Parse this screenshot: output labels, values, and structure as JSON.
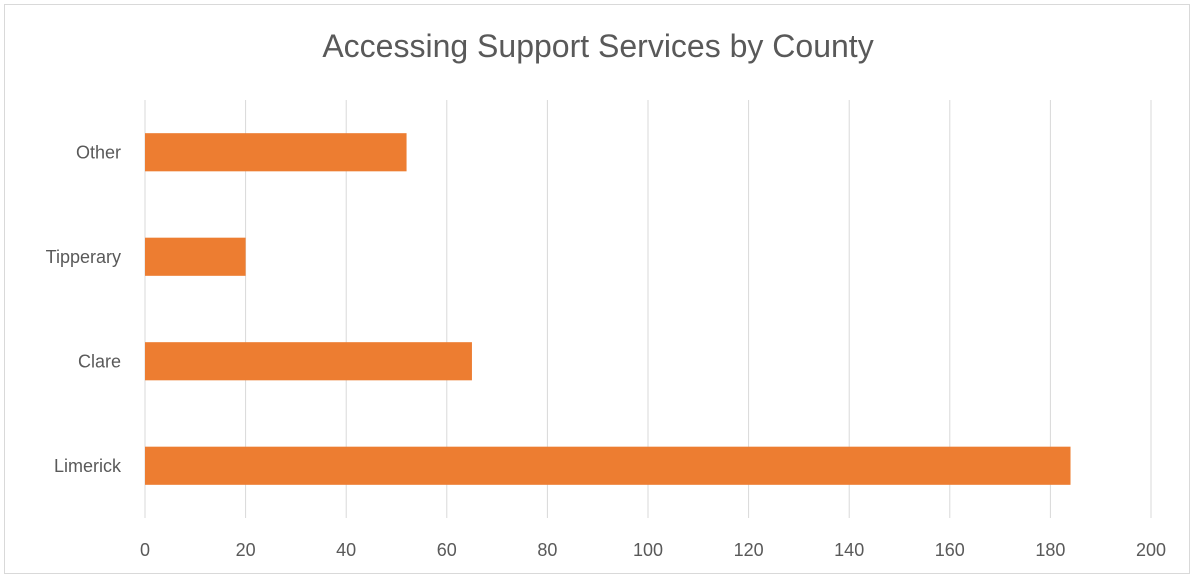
{
  "chart_data": {
    "type": "bar",
    "orientation": "horizontal",
    "title": "Accessing Support Services by County",
    "xlabel": "",
    "ylabel": "",
    "categories": [
      "Limerick",
      "Clare",
      "Tipperary",
      "Other"
    ],
    "values": [
      184,
      65,
      20,
      52
    ],
    "xlim": [
      0,
      200
    ],
    "x_ticks": [
      0,
      20,
      40,
      60,
      80,
      100,
      120,
      140,
      160,
      180,
      200
    ],
    "grid": "vertical",
    "legend": "none",
    "bar_color": "#ED7D31",
    "grid_color": "#D9D9D9"
  }
}
